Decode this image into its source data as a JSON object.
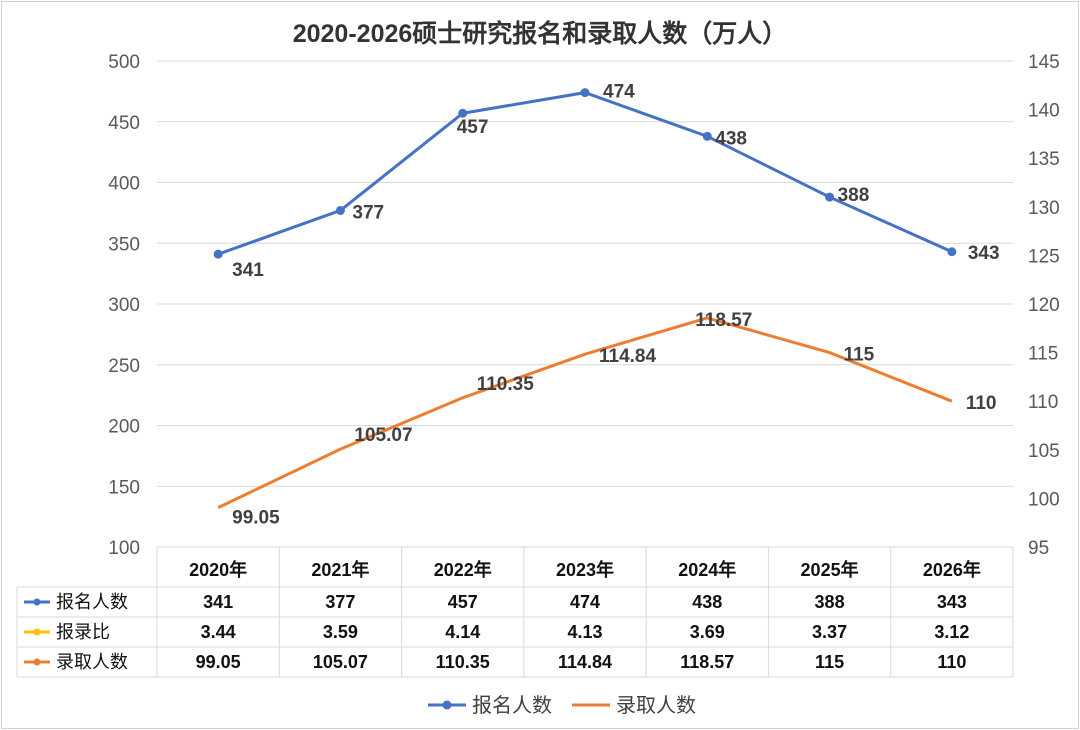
{
  "chart_data": {
    "type": "line",
    "title": "2020-2026硕士研究报名和录取人数（万人）",
    "categories": [
      "2020年",
      "2021年",
      "2022年",
      "2023年",
      "2024年",
      "2025年",
      "2026年"
    ],
    "y_left": {
      "range": [
        100,
        500
      ],
      "ticks": [
        "100",
        "150",
        "200",
        "250",
        "300",
        "350",
        "400",
        "450",
        "500"
      ]
    },
    "y_right": {
      "range": [
        95,
        145
      ],
      "ticks": [
        "95",
        "100",
        "105",
        "110",
        "115",
        "120",
        "125",
        "130",
        "135",
        "140",
        "145"
      ]
    },
    "grid": true,
    "legend_position": "bottom",
    "series": [
      {
        "name": "报名人数",
        "axis": "left",
        "color": "#4472C4",
        "marker": "circle",
        "values": [
          341,
          377,
          457,
          474,
          438,
          388,
          343
        ],
        "labels": [
          "341",
          "377",
          "457",
          "474",
          "438",
          "388",
          "343"
        ]
      },
      {
        "name": "录取人数",
        "axis": "right",
        "color": "#ED7D31",
        "marker": "none",
        "values": [
          99.05,
          105.07,
          110.35,
          114.84,
          118.57,
          115,
          110
        ],
        "labels": [
          "99.05",
          "105.07",
          "110.35",
          "114.84",
          "118.57",
          "115",
          "110"
        ]
      }
    ],
    "table": {
      "rows": [
        {
          "name": "报名人数",
          "color": "#4472C4",
          "values": [
            "341",
            "377",
            "457",
            "474",
            "438",
            "388",
            "343"
          ]
        },
        {
          "name": "报录比",
          "color": "#FFC000",
          "values": [
            "3.44",
            "3.59",
            "4.14",
            "4.13",
            "3.69",
            "3.37",
            "3.12"
          ]
        },
        {
          "name": "录取人数",
          "color": "#ED7D31",
          "values": [
            "99.05",
            "105.07",
            "110.35",
            "114.84",
            "118.57",
            "115",
            "110"
          ]
        }
      ]
    },
    "legend": [
      "报名人数",
      "录取人数"
    ]
  }
}
